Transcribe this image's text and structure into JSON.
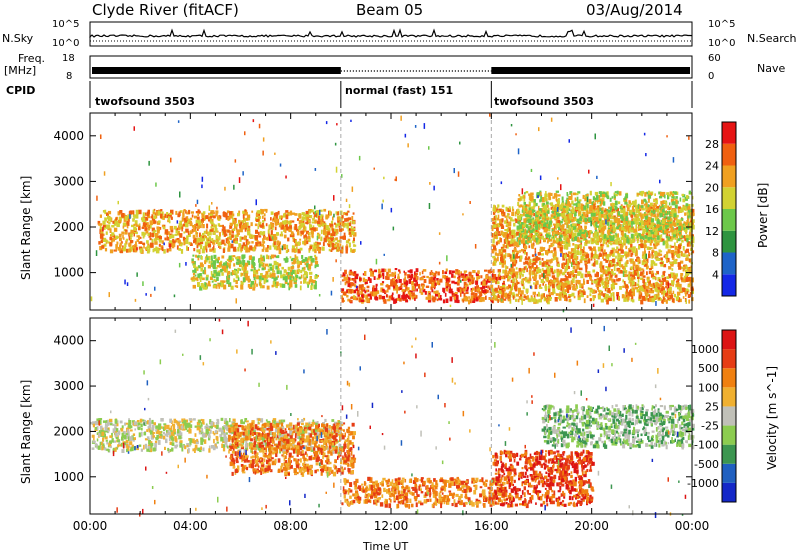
{
  "header": {
    "station": "Clyde River (fitACF)",
    "beam": "Beam 05",
    "date": "03/Aug/2014"
  },
  "top_panels": {
    "nsky_label": "N.Sky",
    "nsky_ticks": [
      "10^5",
      "10^0"
    ],
    "nsearch_label": "N.Search",
    "nsearch_ticks": [
      "10^5",
      "10^0"
    ],
    "freq_label": "Freq.",
    "freq_unit": "[MHz]",
    "freq_ticks": [
      "18",
      "8"
    ],
    "nave_label": "Nave",
    "nave_ticks": [
      "60",
      "0"
    ],
    "cpid_label": "CPID",
    "cpid_segments": [
      {
        "label": "twofsound 3503",
        "start_hour": 0,
        "end_hour": 10
      },
      {
        "label": "normal (fast) 151",
        "start_hour": 10,
        "end_hour": 16
      },
      {
        "label": "twofsound 3503",
        "start_hour": 16,
        "end_hour": 24
      }
    ]
  },
  "xaxis": {
    "label": "Time UT",
    "ticks": [
      "00:00",
      "04:00",
      "08:00",
      "12:00",
      "16:00",
      "20:00",
      "00:00"
    ]
  },
  "chart_data": [
    {
      "type": "heatmap",
      "quantity": "Power",
      "ylabel": "Slant Range [km]",
      "yticks": [
        "4000",
        "3000",
        "2000",
        "1000"
      ],
      "ylim": [
        180,
        4500
      ],
      "xlim_hours": [
        0,
        24
      ],
      "colorbar_label": "Power [dB]",
      "colorbar_ticks": [
        "28",
        "24",
        "20",
        "16",
        "12",
        "8",
        "4"
      ],
      "colors": [
        "#1428e6",
        "#1e64c8",
        "#2e9440",
        "#6cc84a",
        "#d2d232",
        "#f0a020",
        "#f06010",
        "#e61414"
      ],
      "bands": [
        {
          "start_hour": 0.3,
          "end_hour": 10.5,
          "range_min": 1500,
          "range_max": 2400,
          "level": 5
        },
        {
          "start_hour": 4.0,
          "end_hour": 9.0,
          "range_min": 700,
          "range_max": 1400,
          "level": 4
        },
        {
          "start_hour": 10.0,
          "end_hour": 16.5,
          "range_min": 400,
          "range_max": 1100,
          "level": 6
        },
        {
          "start_hour": 16.0,
          "end_hour": 24.0,
          "range_min": 400,
          "range_max": 2500,
          "level": 5
        },
        {
          "start_hour": 17.0,
          "end_hour": 24.0,
          "range_min": 1700,
          "range_max": 2800,
          "level": 4
        }
      ]
    },
    {
      "type": "heatmap",
      "quantity": "Velocity",
      "ylabel": "Slant Range [km]",
      "yticks": [
        "4000",
        "3000",
        "2000",
        "1000"
      ],
      "ylim": [
        180,
        4500
      ],
      "xlim_hours": [
        0,
        24
      ],
      "colorbar_label": "Velocity [m s^-1]",
      "colorbar_ticks": [
        "1000",
        "500",
        "100",
        "25",
        "-25",
        "-100",
        "-500",
        "-1000"
      ],
      "colors": [
        "#1428c8",
        "#2060c0",
        "#3c9650",
        "#8ccc50",
        "#c0c0b8",
        "#f0b030",
        "#f08010",
        "#e63c14",
        "#dc1414"
      ],
      "bands": [
        {
          "start_hour": 0.0,
          "end_hour": 10.0,
          "range_min": 1600,
          "range_max": 2300,
          "level": 4
        },
        {
          "start_hour": 5.5,
          "end_hour": 10.5,
          "range_min": 1100,
          "range_max": 2200,
          "level": 6
        },
        {
          "start_hour": 10.0,
          "end_hour": 16.5,
          "range_min": 400,
          "range_max": 1000,
          "level": 6
        },
        {
          "start_hour": 16.0,
          "end_hour": 20.0,
          "range_min": 400,
          "range_max": 1600,
          "level": 7
        },
        {
          "start_hour": 18.0,
          "end_hour": 24.0,
          "range_min": 1700,
          "range_max": 2600,
          "level": 3
        }
      ]
    }
  ]
}
